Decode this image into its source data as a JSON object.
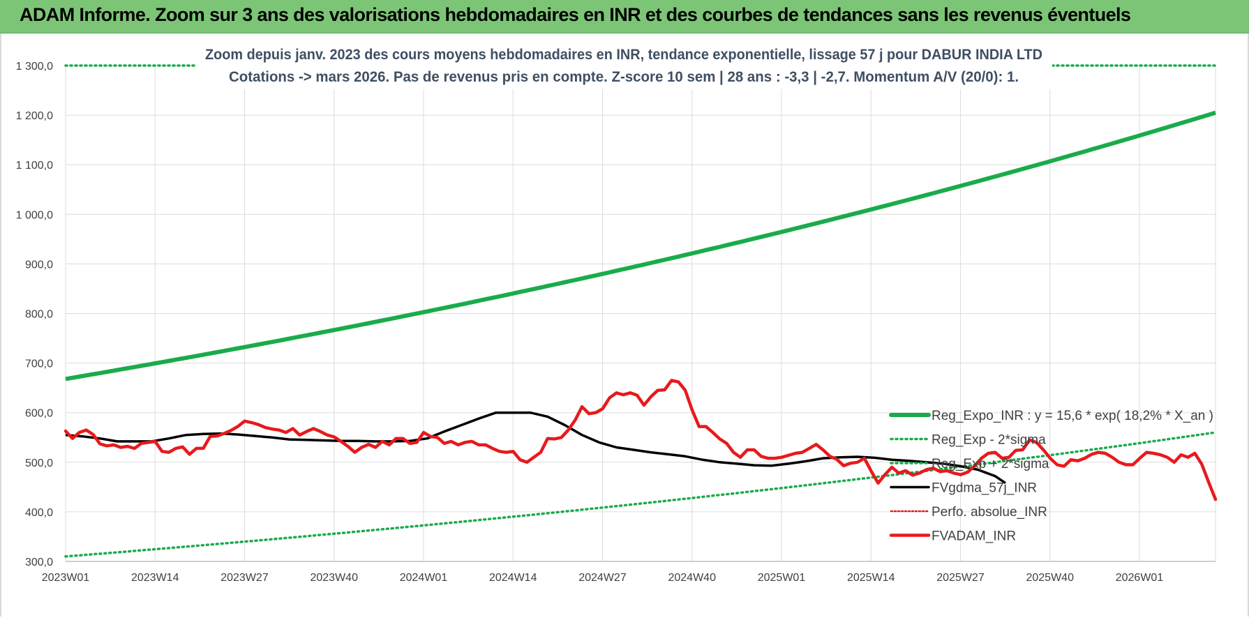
{
  "banner": {
    "title": "ADAM Informe. Zoom sur 3 ans des valorisations hebdomadaires en INR et des courbes de tendances sans les revenus éventuels"
  },
  "chart_data": {
    "type": "line",
    "title_line1": "Zoom depuis janv. 2023 des cours moyens hebdomadaires en INR, tendance exponentielle, lissage 57 j pour DABUR INDIA LTD",
    "title_line2": "Cotations -> mars 2026. Pas de revenus pris en compte. Z-score 10 sem | 28 ans : -3,3 | -2,7. Momentum A/V (20/0): 1.",
    "ylim": [
      300,
      1300
    ],
    "yticks": [
      300,
      400,
      500,
      600,
      700,
      800,
      900,
      1000,
      1100,
      1200,
      1300
    ],
    "ytick_labels": [
      "300,0",
      "400,0",
      "500,0",
      "600,0",
      "700,0",
      "800,0",
      "900,0",
      "1 000,0",
      "1 100,0",
      "1 200,0",
      "1 300,0"
    ],
    "n_weeks": 170,
    "x_tick_labels": [
      "2023W01",
      "2023W14",
      "2023W27",
      "2023W40",
      "2024W01",
      "2024W14",
      "2024W27",
      "2024W40",
      "2025W01",
      "2025W14",
      "2025W27",
      "2025W40",
      "2026W01"
    ],
    "grid": true,
    "legend_position": "right",
    "colors": {
      "green": "#1aab4b",
      "black": "#000000",
      "red": "#e8191c",
      "grid": "#dcdcdc",
      "axis_text": "#404040",
      "title_text": "#3f4f63"
    },
    "series": [
      {
        "name": "Reg_Expo_INR : y = 15,6 * exp( 18,2% *  X_an )",
        "style": "solid",
        "color": "#1aab4b",
        "start": 668,
        "end": 1205
      },
      {
        "name": "Reg_Exp - 2*sigma",
        "style": "dotted",
        "color": "#1aab4b",
        "start": 310,
        "end": 560
      },
      {
        "name": "Reg_Exp + 2*sigma",
        "style": "dotted",
        "color": "#1aab4b",
        "constant": 1300
      },
      {
        "name": "FVgdma_57j_INR",
        "style": "solid",
        "color": "#000000",
        "points": [
          [
            0,
            555
          ],
          [
            5,
            552
          ],
          [
            10,
            548
          ],
          [
            15,
            542
          ],
          [
            20,
            542
          ],
          [
            25,
            542
          ],
          [
            30,
            548
          ],
          [
            35,
            555
          ],
          [
            40,
            557
          ],
          [
            45,
            558
          ],
          [
            50,
            556
          ],
          [
            55,
            553
          ],
          [
            60,
            550
          ],
          [
            65,
            546
          ],
          [
            70,
            545
          ],
          [
            75,
            544
          ],
          [
            80,
            543
          ],
          [
            85,
            543
          ],
          [
            90,
            542
          ],
          [
            95,
            542
          ],
          [
            100,
            543
          ],
          [
            105,
            548
          ],
          [
            110,
            562
          ],
          [
            115,
            575
          ],
          [
            120,
            588
          ],
          [
            125,
            600
          ],
          [
            130,
            600
          ],
          [
            135,
            600
          ],
          [
            140,
            592
          ],
          [
            145,
            575
          ],
          [
            150,
            555
          ],
          [
            155,
            540
          ],
          [
            160,
            530
          ],
          [
            165,
            525
          ],
          [
            170,
            520
          ],
          [
            175,
            516
          ],
          [
            180,
            512
          ],
          [
            185,
            505
          ],
          [
            190,
            500
          ],
          [
            195,
            497
          ],
          [
            200,
            494
          ],
          [
            205,
            493
          ],
          [
            210,
            497
          ],
          [
            215,
            502
          ],
          [
            220,
            508
          ],
          [
            225,
            510
          ],
          [
            230,
            511
          ],
          [
            235,
            509
          ],
          [
            240,
            505
          ],
          [
            245,
            503
          ],
          [
            250,
            500
          ],
          [
            255,
            497
          ],
          [
            260,
            492
          ],
          [
            265,
            485
          ],
          [
            270,
            472
          ],
          [
            273,
            458
          ]
        ]
      },
      {
        "name": "Perfo. absolue_INR",
        "style": "dotted",
        "color": "#e8191c",
        "points": []
      },
      {
        "name": "FVADAM_INR",
        "style": "solid",
        "color": "#e8191c",
        "points": [
          [
            0,
            563
          ],
          [
            2,
            548
          ],
          [
            4,
            560
          ],
          [
            6,
            565
          ],
          [
            8,
            556
          ],
          [
            10,
            537
          ],
          [
            12,
            533
          ],
          [
            14,
            535
          ],
          [
            16,
            530
          ],
          [
            18,
            532
          ],
          [
            20,
            528
          ],
          [
            22,
            538
          ],
          [
            24,
            540
          ],
          [
            26,
            542
          ],
          [
            28,
            522
          ],
          [
            30,
            520
          ],
          [
            32,
            528
          ],
          [
            34,
            531
          ],
          [
            36,
            516
          ],
          [
            38,
            528
          ],
          [
            40,
            528
          ],
          [
            42,
            552
          ],
          [
            44,
            553
          ],
          [
            46,
            558
          ],
          [
            48,
            564
          ],
          [
            50,
            572
          ],
          [
            52,
            583
          ],
          [
            54,
            580
          ],
          [
            56,
            576
          ],
          [
            58,
            570
          ],
          [
            60,
            567
          ],
          [
            62,
            565
          ],
          [
            64,
            560
          ],
          [
            66,
            568
          ],
          [
            68,
            555
          ],
          [
            70,
            562
          ],
          [
            72,
            568
          ],
          [
            74,
            562
          ],
          [
            76,
            555
          ],
          [
            78,
            551
          ],
          [
            80,
            542
          ],
          [
            82,
            532
          ],
          [
            84,
            520
          ],
          [
            86,
            530
          ],
          [
            88,
            536
          ],
          [
            90,
            530
          ],
          [
            92,
            542
          ],
          [
            94,
            535
          ],
          [
            96,
            548
          ],
          [
            98,
            548
          ],
          [
            100,
            538
          ],
          [
            102,
            540
          ],
          [
            104,
            560
          ],
          [
            106,
            552
          ],
          [
            108,
            550
          ],
          [
            110,
            538
          ],
          [
            112,
            542
          ],
          [
            114,
            535
          ],
          [
            116,
            540
          ],
          [
            118,
            542
          ],
          [
            120,
            535
          ],
          [
            122,
            535
          ],
          [
            124,
            528
          ],
          [
            126,
            522
          ],
          [
            128,
            520
          ],
          [
            130,
            522
          ],
          [
            132,
            505
          ],
          [
            134,
            500
          ],
          [
            136,
            510
          ],
          [
            138,
            520
          ],
          [
            140,
            548
          ],
          [
            142,
            547
          ],
          [
            144,
            550
          ],
          [
            146,
            565
          ],
          [
            148,
            585
          ],
          [
            150,
            612
          ],
          [
            152,
            598
          ],
          [
            154,
            600
          ],
          [
            156,
            608
          ],
          [
            158,
            630
          ],
          [
            160,
            640
          ],
          [
            162,
            636
          ],
          [
            164,
            640
          ],
          [
            166,
            635
          ],
          [
            168,
            615
          ],
          [
            170,
            632
          ],
          [
            172,
            645
          ],
          [
            174,
            646
          ],
          [
            176,
            665
          ],
          [
            178,
            662
          ],
          [
            180,
            645
          ],
          [
            182,
            605
          ],
          [
            184,
            572
          ],
          [
            186,
            572
          ],
          [
            188,
            560
          ],
          [
            190,
            547
          ],
          [
            192,
            538
          ],
          [
            194,
            520
          ],
          [
            196,
            510
          ],
          [
            198,
            525
          ],
          [
            200,
            525
          ],
          [
            202,
            512
          ],
          [
            204,
            508
          ],
          [
            206,
            508
          ],
          [
            208,
            510
          ],
          [
            210,
            514
          ],
          [
            212,
            518
          ],
          [
            214,
            520
          ],
          [
            216,
            528
          ],
          [
            218,
            536
          ],
          [
            220,
            525
          ],
          [
            222,
            512
          ],
          [
            224,
            506
          ],
          [
            226,
            493
          ],
          [
            228,
            498
          ],
          [
            230,
            500
          ],
          [
            232,
            508
          ],
          [
            234,
            482
          ],
          [
            236,
            458
          ],
          [
            238,
            475
          ],
          [
            240,
            490
          ],
          [
            242,
            478
          ],
          [
            244,
            483
          ],
          [
            246,
            474
          ],
          [
            248,
            478
          ],
          [
            250,
            485
          ],
          [
            252,
            488
          ],
          [
            254,
            481
          ],
          [
            256,
            483
          ],
          [
            258,
            478
          ],
          [
            260,
            475
          ],
          [
            262,
            480
          ],
          [
            264,
            492
          ],
          [
            266,
            508
          ],
          [
            268,
            518
          ],
          [
            270,
            520
          ],
          [
            272,
            508
          ],
          [
            274,
            510
          ],
          [
            276,
            524
          ],
          [
            278,
            525
          ],
          [
            280,
            545
          ],
          [
            282,
            540
          ],
          [
            284,
            525
          ],
          [
            286,
            508
          ],
          [
            288,
            495
          ],
          [
            290,
            492
          ],
          [
            292,
            505
          ],
          [
            294,
            503
          ],
          [
            296,
            508
          ],
          [
            298,
            516
          ],
          [
            300,
            520
          ],
          [
            302,
            518
          ],
          [
            304,
            510
          ],
          [
            306,
            500
          ],
          [
            308,
            495
          ],
          [
            310,
            495
          ],
          [
            312,
            508
          ],
          [
            314,
            520
          ],
          [
            316,
            518
          ],
          [
            318,
            515
          ],
          [
            320,
            510
          ],
          [
            322,
            500
          ],
          [
            324,
            515
          ],
          [
            326,
            510
          ],
          [
            328,
            518
          ],
          [
            330,
            496
          ],
          [
            332,
            460
          ],
          [
            334,
            425
          ]
        ]
      }
    ]
  }
}
